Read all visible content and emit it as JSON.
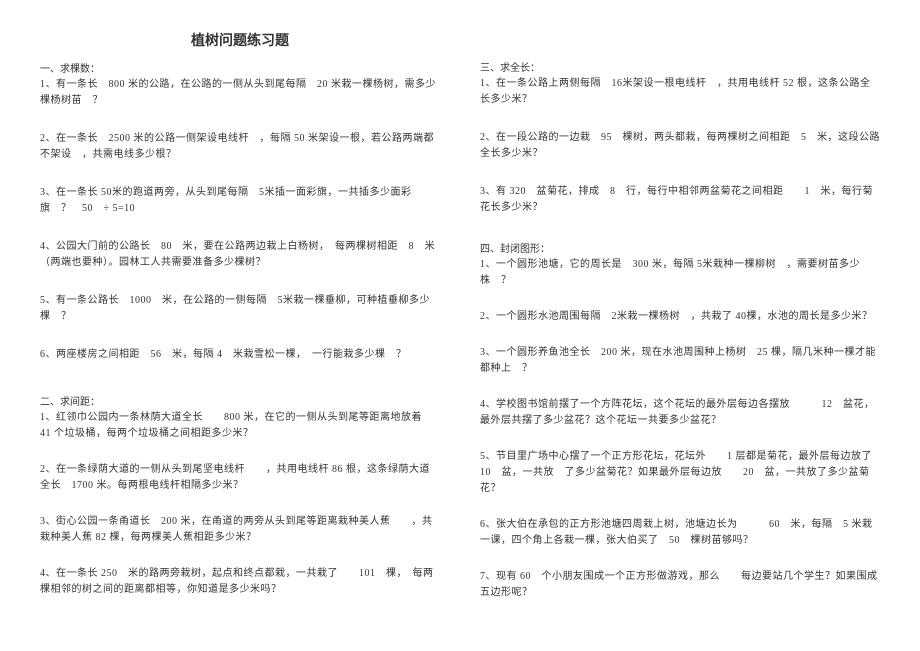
{
  "title": "植树问题练习题",
  "left": {
    "section1": {
      "heading": "一、求棵数：",
      "q1": "1、有一条长　800 米的公路，在公路的一侧从头到尾每隔　20 米栽一棵杨树，需多少棵杨树苗　？",
      "q2": "2、在一条长　2500 米的公路一侧架设电线杆　，每隔 50 米架设一根，若公路两端都不架设　，共需电线多少根？",
      "q3": "3、在一条长 50米的跑道两旁，从头到尾每隔　5米插一面彩旗，一共插多少面彩旗　？　50　÷ 5=10",
      "q4": "4、公园大门前的公路长　80　米，要在公路两边栽上白杨树，　每两棵树相距　8　米（两端也要种）。园林工人共需要准备多少棵树？",
      "q5": "5、有一条公路长　1000　米，在公路的一侧每隔　5米栽一棵垂柳，可种植垂柳多少棵　？",
      "q6": "6、两座楼房之间相距　56　米，每隔 4　米栽雪松一棵，　一行能栽多少棵　？"
    },
    "section2": {
      "heading": "二、求间距：",
      "q1": "1、红领巾公园内一条林荫大道全长　　800 米，在它的一侧从头到尾等距离地放着　　41 个垃圾桶，每两个垃圾桶之间相距多少米？",
      "q2": "2、在一条绿荫大道的一侧从头到尾坚电线杆　　，共用电线杆 86 根，这条绿荫大道全长　1700 米。每两根电线杆相隔多少米？",
      "q3": "3、街心公园一条甬道长　200 米，在甬道的两旁从头到尾等距离栽种美人蕉　　，共栽种美人蕉 82 棵，每两棵美人蕉相距多少米？",
      "q4": "4、在一条长 250　米的路两旁栽树，起点和终点都栽，一共栽了　　101　棵，　每两棵相邻的树之间的距离都相等，你知道是多少米吗？"
    }
  },
  "right": {
    "section3": {
      "heading": "三、求全长：",
      "q1": "1、在一条公路上两侧每隔　16米架设一根电线杆　，共用电线杆 52 根，这条公路全长多少米？",
      "q2": "2、在一段公路的一边栽　95　棵树，两头都栽，每两棵树之间相距　5　米，这段公路全长多少米？",
      "q3": "3、有 320　盆菊花，排成　8　行，每行中相邻两盆菊花之间相距　　1　米，每行菊花长多少米？"
    },
    "section4": {
      "heading": "四、封闭图形：",
      "q1": "1、一个圆形池塘，它的周长是　300 米，每隔 5米栽种一棵柳树　，需要树苗多少株　？",
      "q2": "2、一个圆形水池周围每隔　2米栽一棵杨树　，共栽了 40棵，水池的周长是多少米？",
      "q3": "3、一个圆形养鱼池全长　200 米，现在水池周围种上杨树　25 棵，隔几米种一棵才能都种上　？",
      "q4": "4、学校图书馆前摆了一个方阵花坛，这个花坛的最外层每边各摆放　　　12　盆花，最外层共摆了多少盆花？这个花坛一共要多少盆花？",
      "q5": "5、节目里广场中心摆了一个正方形花坛，花坛外　　1 层都是菊花，最外层每边放了　10　盆，一共放　了多少盆菊花？如果最外层每边放　　20　盆，一共放了多少盆菊花？",
      "q6": "6、张大伯在承包的正方形池塘四周栽上树，池塘边长为　　　60　米，每隔　5 米栽一课，四个角上各栽一棵，张大伯买了　50　棵树苗够吗？",
      "q7": "7、现有 60　个小朋友围成一个正方形做游戏，那么　　每边要站几个学生？如果围成五边形呢？"
    }
  }
}
